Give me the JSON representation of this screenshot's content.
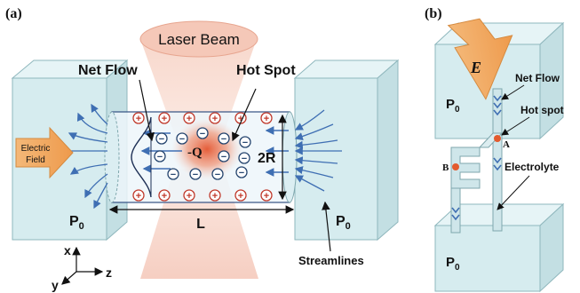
{
  "panel_a": {
    "label": "(a)",
    "laser_beam": "Laser Beam",
    "net_flow": "Net Flow",
    "hot_spot": "Hot Spot",
    "electric_field": [
      "Electric",
      "Field"
    ],
    "charge": "-Q",
    "radius": "2R",
    "length": "L",
    "pressure_left": "P",
    "pressure_right": "P",
    "pressure_sub": "0",
    "streamlines": "Streamlines",
    "axes": {
      "x": "x",
      "y": "y",
      "z": "z"
    },
    "plus_symbol": "+",
    "minus_symbol": "−"
  },
  "panel_b": {
    "label": "(b)",
    "field": "E",
    "net_flow": "Net Flow",
    "hot_spot": "Hot spot",
    "electrolyte": "Electrolyte",
    "point_a": "A",
    "point_b": "B",
    "pressure_top": "P",
    "pressure_bottom": "P",
    "pressure_sub": "0"
  },
  "colors": {
    "reservoir_fill": "#d6ecef",
    "reservoir_edge": "#8fb7bd",
    "laser": "#f6d2c6",
    "hot_spot": "#e8603c",
    "arrow_orange": "#f0a25a",
    "streamline": "#3f6fb3",
    "plus_ring": "#c0392b",
    "minus_ring": "#24446e"
  }
}
